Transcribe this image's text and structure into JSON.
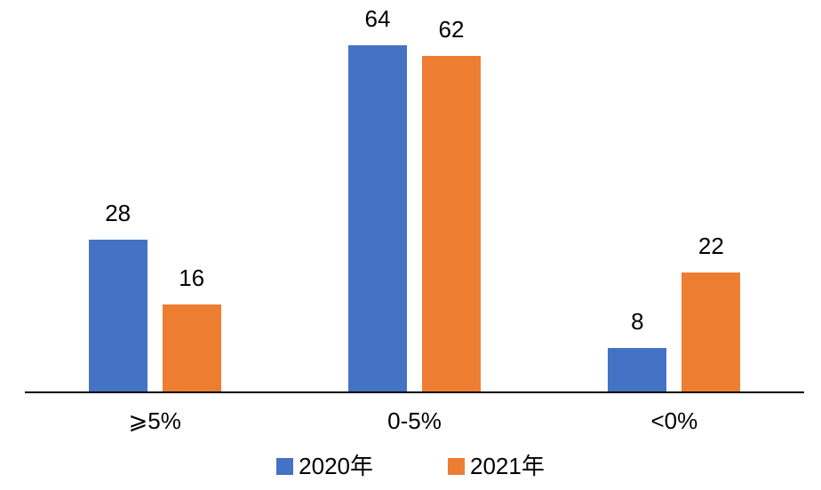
{
  "chart_data": {
    "type": "bar",
    "categories": [
      "⩾5%",
      "0-5%",
      "<0%"
    ],
    "series": [
      {
        "name": "2020年",
        "color": "#4472C4",
        "values": [
          28,
          64,
          8
        ]
      },
      {
        "name": "2021年",
        "color": "#ED7D31",
        "values": [
          16,
          62,
          22
        ]
      }
    ],
    "title": "",
    "xlabel": "",
    "ylabel": "",
    "ylim": [
      0,
      70
    ],
    "grid": false,
    "legend_position": "bottom",
    "value_labels": true,
    "axis_line_color": "#000000",
    "text_color": "#000000"
  }
}
